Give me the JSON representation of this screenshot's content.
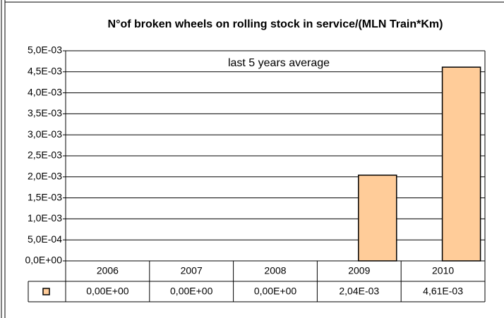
{
  "chart_data": {
    "type": "bar",
    "title": "N°of broken wheels on rolling stock in service/(MLN Train*Km)",
    "annotation": "last 5 years average",
    "categories": [
      "2006",
      "2007",
      "2008",
      "2009",
      "2010"
    ],
    "values": [
      0,
      0,
      0,
      0.00204,
      0.00461
    ],
    "value_labels": [
      "0,00E+00",
      "0,00E+00",
      "0,00E+00",
      "2,04E-03",
      "4,61E-03"
    ],
    "color": "#ffcc99",
    "ylim": [
      0,
      0.005
    ],
    "yticks": [
      {
        "value": 0,
        "label": "0,0E+00"
      },
      {
        "value": 0.0005,
        "label": "5,0E-04"
      },
      {
        "value": 0.001,
        "label": "1,0E-03"
      },
      {
        "value": 0.0015,
        "label": "1,5E-03"
      },
      {
        "value": 0.002,
        "label": "2,0E-03"
      },
      {
        "value": 0.0025,
        "label": "2,5E-03"
      },
      {
        "value": 0.003,
        "label": "3,0E-03"
      },
      {
        "value": 0.0035,
        "label": "3,5E-03"
      },
      {
        "value": 0.004,
        "label": "4,0E-03"
      },
      {
        "value": 0.0045,
        "label": "4,5E-03"
      },
      {
        "value": 0.005,
        "label": "5,0E-03"
      }
    ],
    "grid": true
  }
}
